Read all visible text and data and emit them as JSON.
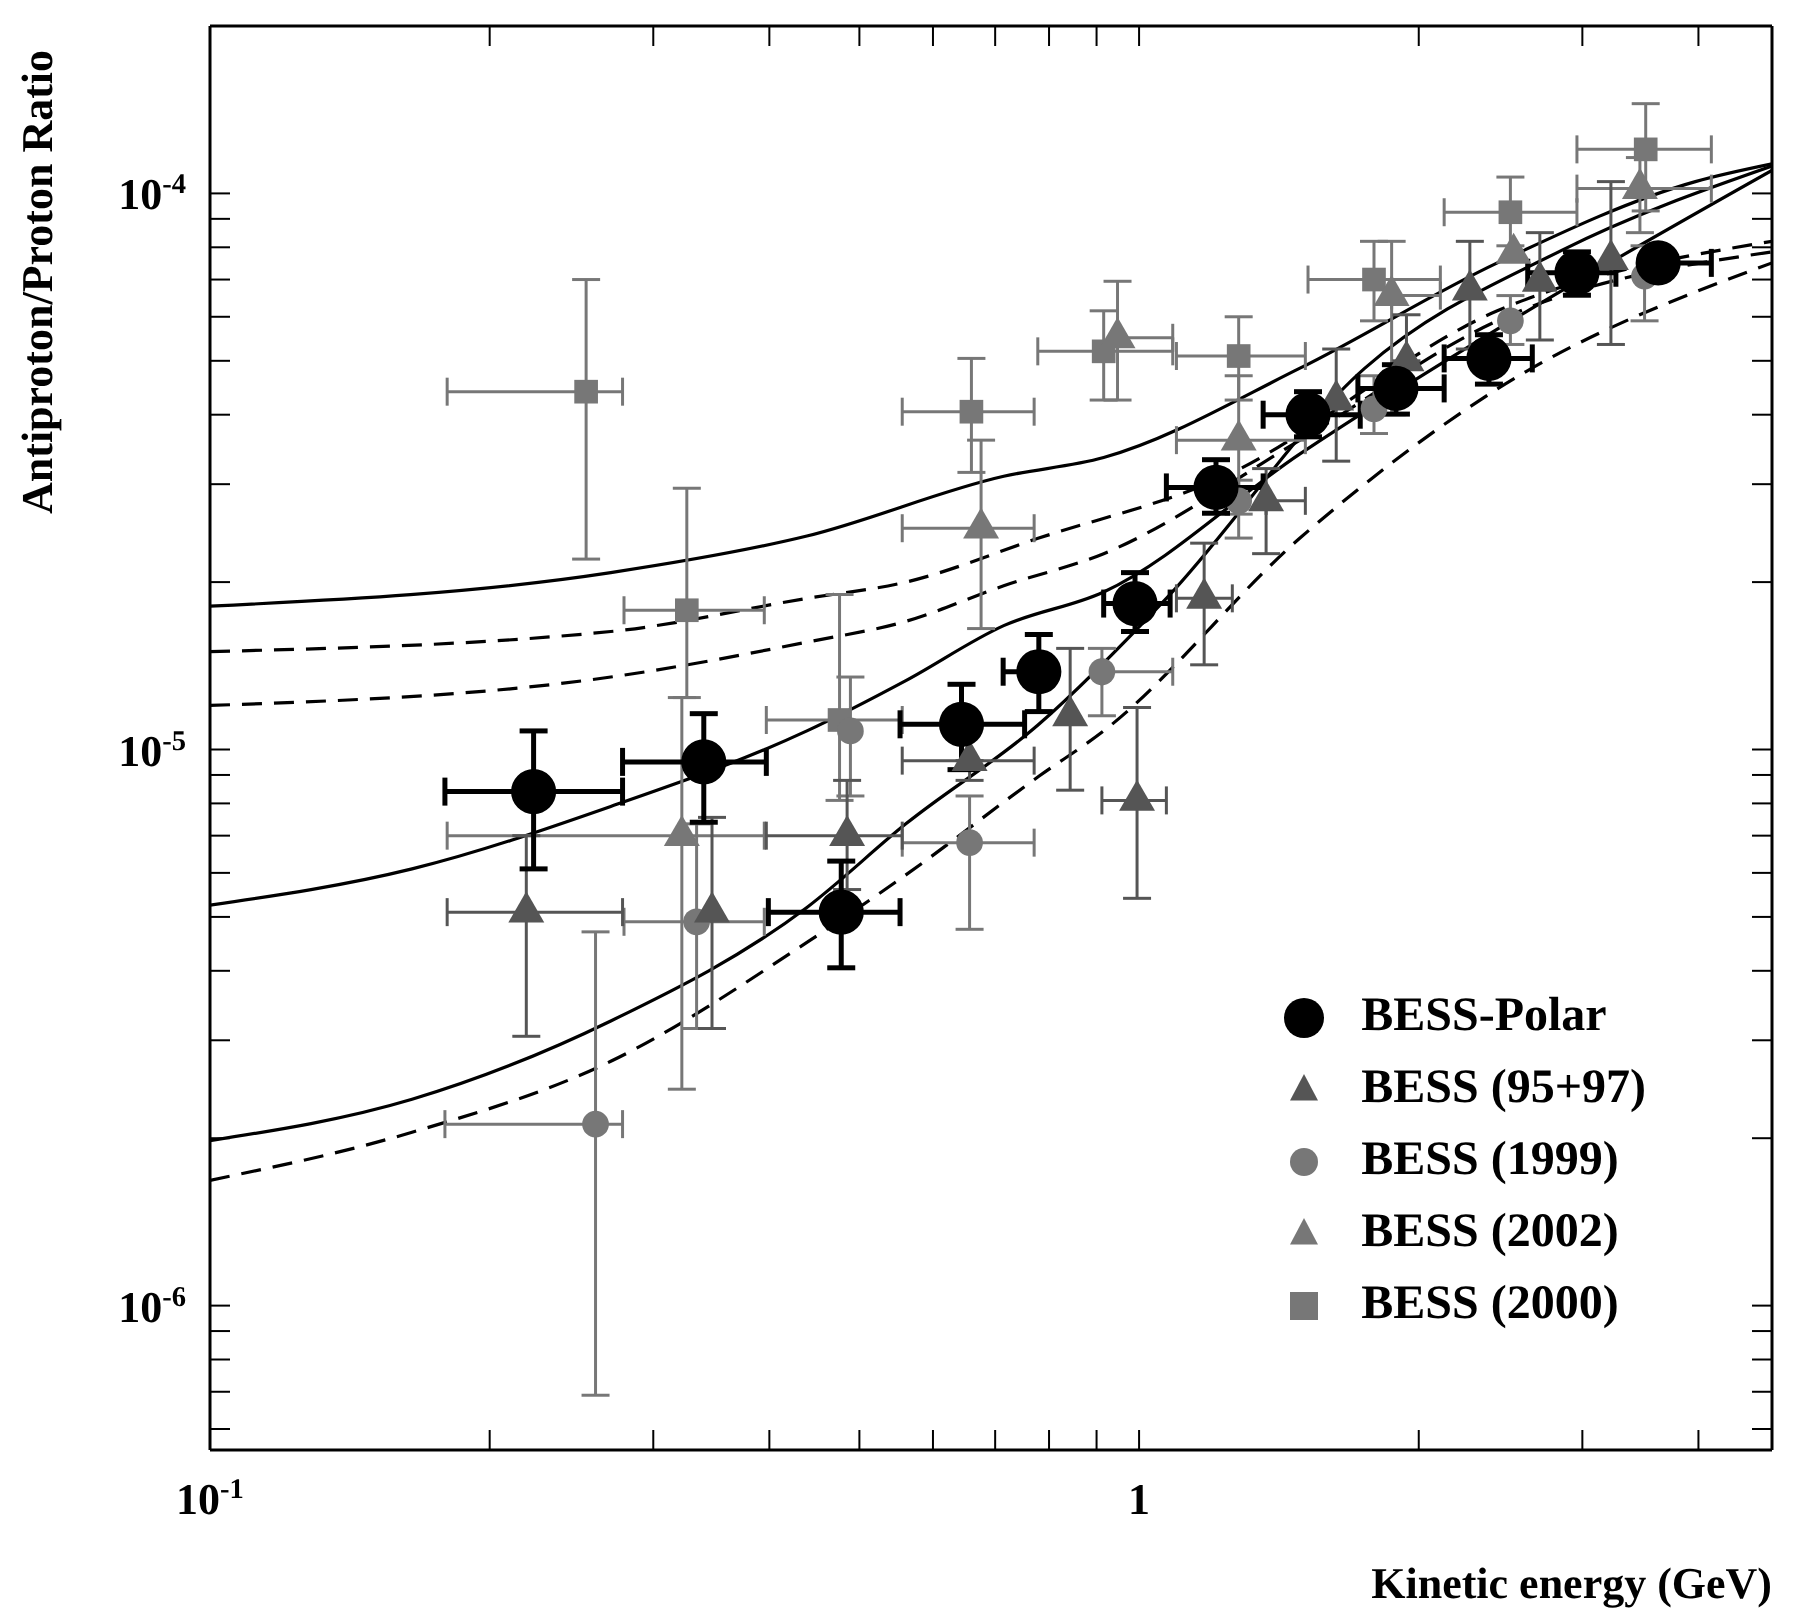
{
  "chart_data": {
    "type": "scatter",
    "xlabel": "Kinetic energy (GeV)",
    "ylabel": "Antiproton/Proton Ratio",
    "log": "xy",
    "legend": "bottom right",
    "xlim": [
      0.1,
      4.8
    ],
    "ylim": [
      5.5e-07,
      0.0002
    ],
    "xticks": [
      {
        "value": 0.1,
        "label": "10$^{-1}$"
      },
      {
        "value": 0.2,
        "label": null
      },
      {
        "value": 0.3,
        "label": null
      },
      {
        "value": 0.4,
        "label": null
      },
      {
        "value": 0.5,
        "label": null
      },
      {
        "value": 0.6,
        "label": null
      },
      {
        "value": 0.7,
        "label": null
      },
      {
        "value": 0.8,
        "label": null
      },
      {
        "value": 0.9,
        "label": null
      },
      1,
      {
        "value": 2,
        "label": null
      },
      {
        "value": 3,
        "label": null
      },
      {
        "value": 4,
        "label": null
      }
    ],
    "yticks": [
      {
        "value": 6e-07,
        "label": null
      },
      {
        "value": 7e-07,
        "label": null
      },
      {
        "value": 8e-07,
        "label": null
      },
      {
        "value": 9e-07,
        "label": null
      },
      {
        "value": 1e-06,
        "label": "10$^{-6}$"
      },
      {
        "value": 2e-06,
        "label": null
      },
      {
        "value": 3e-06,
        "label": null
      },
      {
        "value": 4e-06,
        "label": null
      },
      {
        "value": 5e-06,
        "label": null
      },
      {
        "value": 6e-06,
        "label": null
      },
      {
        "value": 7e-06,
        "label": null
      },
      {
        "value": 8e-06,
        "label": null
      },
      {
        "value": 9e-06,
        "label": null
      },
      {
        "value": 1e-05,
        "label": "10$^{-5}$"
      },
      {
        "value": 2e-05,
        "label": null
      },
      {
        "value": 3e-05,
        "label": null
      },
      {
        "value": 4e-05,
        "label": null
      },
      {
        "value": 5e-05,
        "label": null
      },
      {
        "value": 6e-05,
        "label": null
      },
      {
        "value": 7e-05,
        "label": null
      },
      {
        "value": 8e-05,
        "label": null
      },
      {
        "value": 9e-05,
        "label": null
      },
      {
        "value": 0.0001,
        "label": "10$^{-4}$"
      }
    ],
    "series": [
      {
        "type": "line",
        "color": "#000000",
        "line_style": "solid",
        "x": [
          0.1,
          0.27,
          0.439,
          0.715,
          0.916,
          1.49,
          2.43,
          3.97,
          4.8
        ],
        "values": [
          1.81e-05,
          2.08e-05,
          2.42e-05,
          3.1e-05,
          3.35e-05,
          4.85e-05,
          7.5e-05,
          0.000105,
          0.000113
        ]
      },
      {
        "type": "line",
        "color": "#000000",
        "line_style": "dashed",
        "x": [
          0.1,
          0.27,
          0.439,
          0.561,
          0.78,
          1.21,
          2.43,
          4.8
        ],
        "values": [
          1.5e-05,
          1.63e-05,
          1.87e-05,
          2e-05,
          2.4e-05,
          3.05e-05,
          6.15e-05,
          8.2e-05
        ]
      },
      {
        "type": "line",
        "color": "#000000",
        "line_style": "dashed",
        "x": [
          0.1,
          0.27,
          0.439,
          0.561,
          0.715,
          0.916,
          1.49,
          2.43,
          4.8
        ],
        "values": [
          1.2e-05,
          1.35e-05,
          1.56e-05,
          1.7e-05,
          1.97e-05,
          2.25e-05,
          3.6e-05,
          5.9e-05,
          7.85e-05
        ]
      },
      {
        "type": "line",
        "color": "#000000",
        "line_style": "solid",
        "x": [
          0.1,
          0.165,
          0.27,
          0.439,
          0.561,
          0.715,
          0.916,
          1.49,
          2.43,
          4.8
        ],
        "values": [
          5.25e-06,
          6.1e-06,
          7.9e-06,
          1.08e-05,
          1.33e-05,
          1.67e-05,
          1.92e-05,
          3.4e-05,
          5.7e-05,
          0.00011
        ]
      },
      {
        "type": "line",
        "color": "#000000",
        "line_style": "solid",
        "x": [
          0.1,
          0.165,
          0.27,
          0.439,
          0.561,
          0.78,
          1.07,
          1.75,
          2.85,
          4.8
        ],
        "values": [
          1.98e-06,
          2.35e-06,
          3.25e-06,
          5.2e-06,
          7.35e-06,
          1.11e-05,
          1.87e-05,
          4.85e-05,
          7.9e-05,
          0.000112
        ]
      },
      {
        "type": "line",
        "color": "#000000",
        "line_style": "dashed",
        "x": [
          0.1,
          0.165,
          0.27,
          0.439,
          0.561,
          0.78,
          0.916,
          1.49,
          2.43,
          4.8
        ],
        "values": [
          1.68e-06,
          2.05e-06,
          2.75e-06,
          4.5e-06,
          5.95e-06,
          8.95e-06,
          1.08e-05,
          2.4e-05,
          4.45e-05,
          7.5e-05
        ]
      },
      {
        "name": "BESS (2000)",
        "color": "#777777",
        "marker": "square",
        "x": [
          0.254,
          0.326,
          0.476,
          0.66,
          0.916,
          1.28,
          1.79,
          2.51,
          3.51
        ],
        "values": [
          4.4e-05,
          1.78e-05,
          1.13e-05,
          4.05e-05,
          5.2e-05,
          5.1e-05,
          7e-05,
          9.25e-05,
          0.00012
        ],
        "errors": [
          [
            2.2e-05,
            7e-05
          ],
          [
            1.24e-05,
            2.95e-05
          ],
          [
            8.1e-06,
            1.9e-05
          ],
          [
            3.15e-05,
            5.05e-05
          ],
          [
            4.25e-05,
            6.15e-05
          ],
          [
            4.25e-05,
            6e-05
          ],
          [
            5.9e-05,
            8.2e-05
          ],
          [
            8.05e-05,
            0.000107
          ],
          [
            9.3e-05,
            0.000145
          ]
        ],
        "xerrors": [
          [
            0.18,
            0.278
          ],
          [
            0.279,
            0.395
          ],
          [
            0.397,
            0.556
          ],
          [
            0.556,
            0.771
          ],
          [
            0.778,
            1.087
          ],
          [
            1.097,
            1.51
          ],
          [
            1.52,
            2.11
          ],
          [
            2.13,
            2.96
          ],
          [
            2.96,
            4.13
          ]
        ]
      },
      {
        "name": "BESS (2002)",
        "color": "#777777",
        "marker": "triangle",
        "x": [
          0.322,
          0.676,
          0.948,
          1.28,
          1.87,
          2.53,
          3.46
        ],
        "values": [
          7e-06,
          2.5e-05,
          5.5e-05,
          3.6e-05,
          6.55e-05,
          7.8e-05,
          0.000102
        ],
        "errors": [
          [
            2.45e-06,
            1.24e-05
          ],
          [
            1.65e-05,
            3.6e-05
          ],
          [
            4.25e-05,
            6.95e-05
          ],
          [
            2.65e-05,
            4.7e-05
          ],
          [
            4e-05,
            8.2e-05
          ],
          null,
          [
            8.5e-05,
            0.000116
          ]
        ],
        "xerrors": [
          [
            0.18,
            0.395
          ],
          [
            0.556,
            0.771
          ],
          [
            0.948,
            1.087
          ],
          [
            1.097,
            1.51
          ],
          [
            1.87,
            2.11
          ],
          null,
          [
            2.96,
            4.13
          ]
        ]
      },
      {
        "name": "BESS (1999)",
        "color": "#777777",
        "marker": "circle",
        "x": [
          0.26,
          0.334,
          0.489,
          0.657,
          0.912,
          1.28,
          1.79,
          2.51,
          3.5
        ],
        "values": [
          2.12e-06,
          4.9e-06,
          1.08e-05,
          6.8e-06,
          1.38e-05,
          2.8e-05,
          4.1e-05,
          5.9e-05,
          7.1e-05
        ],
        "errors": [
          [
            6.9e-07,
            4.7e-06
          ],
          [
            3.15e-06,
            7.35e-06
          ],
          [
            8.25e-06,
            1.35e-05
          ],
          [
            4.75e-06,
            8.25e-06
          ],
          [
            1.15e-05,
            1.52e-05
          ],
          [
            2.4e-05,
            3.05e-05
          ],
          [
            3.7e-05,
            4.7e-05
          ],
          [
            5.35e-05,
            6.55e-05
          ],
          [
            5.9e-05,
            8.05e-05
          ]
        ],
        "xerrors": [
          [
            0.179,
            0.278
          ],
          [
            0.279,
            0.395
          ],
          null,
          [
            0.556,
            0.771
          ],
          [
            0.912,
            1.087
          ],
          null,
          null,
          null,
          null
        ]
      },
      {
        "name": "BESS (95+97)",
        "color": "#555555",
        "marker": "triangle",
        "x": [
          0.219,
          0.347,
          0.485,
          0.657,
          0.843,
          0.995,
          1.175,
          1.37,
          1.63,
          1.94,
          2.27,
          2.7,
          3.22
        ],
        "values": [
          5.1e-06,
          5.1e-06,
          7e-06,
          9.55e-06,
          1.15e-05,
          8.1e-06,
          1.87e-05,
          2.8e-05,
          4.25e-05,
          5e-05,
          6.7e-05,
          6.95e-05,
          7.6e-05
        ],
        "errors": [
          [
            3.05e-06,
            7e-06
          ],
          [
            3.15e-06,
            7.55e-06
          ],
          [
            5.6e-06,
            8.8e-06
          ],
          [
            8.8e-06,
            9.55e-06
          ],
          [
            8.45e-06,
            1.52e-05
          ],
          [
            5.4e-06,
            1.19e-05
          ],
          [
            1.42e-05,
            2.35e-05
          ],
          [
            2.25e-05,
            3.2e-05
          ],
          [
            3.3e-05,
            5.25e-05
          ],
          [
            5e-05,
            6.05e-05
          ],
          [
            5.25e-05,
            8.2e-05
          ],
          [
            5.45e-05,
            8.5e-05
          ],
          [
            5.35e-05,
            0.000105
          ]
        ],
        "xerrors": [
          [
            0.18,
            0.278
          ],
          null,
          [
            0.397,
            0.556
          ],
          [
            0.556,
            0.771
          ],
          null,
          [
            0.912,
            1.07
          ],
          [
            1.097,
            1.26
          ],
          [
            1.37,
            1.51
          ],
          null,
          null,
          null,
          null,
          null
        ]
      },
      {
        "name": "BESS-Polar",
        "color": "#000000",
        "marker": "circle",
        "x": [
          0.223,
          0.34,
          0.478,
          0.644,
          0.78,
          0.99,
          1.21,
          1.52,
          1.89,
          2.38,
          2.96,
          3.62
        ],
        "values": [
          8.4e-06,
          9.5e-06,
          5.1e-06,
          1.11e-05,
          1.38e-05,
          1.83e-05,
          2.96e-05,
          4e-05,
          4.46e-05,
          5.05e-05,
          7.2e-05,
          7.5e-05
        ],
        "errors": [
          [
            6.1e-06,
            1.08e-05
          ],
          [
            7.4e-06,
            1.16e-05
          ],
          [
            4.05e-06,
            6.3e-06
          ],
          [
            9.2e-06,
            1.31e-05
          ],
          [
            1.17e-05,
            1.61e-05
          ],
          [
            1.63e-05,
            2.08e-05
          ],
          [
            2.66e-05,
            3.32e-05
          ],
          [
            3.65e-05,
            4.4e-05
          ],
          [
            4.01e-05,
            4.92e-05
          ],
          [
            4.54e-05,
            5.57e-05
          ],
          [
            6.56e-05,
            7.85e-05
          ],
          null
        ],
        "xerrors": [
          [
            0.179,
            0.278
          ],
          [
            0.278,
            0.397
          ],
          [
            0.399,
            0.553
          ],
          [
            0.553,
            0.753
          ],
          [
            0.714,
            0.78
          ],
          [
            0.916,
            1.08
          ],
          [
            1.07,
            1.36
          ],
          [
            1.36,
            1.73
          ],
          [
            1.72,
            2.13
          ],
          [
            2.13,
            2.65
          ],
          [
            2.62,
            3.26
          ],
          [
            3.62,
            4.13
          ]
        ]
      }
    ]
  }
}
